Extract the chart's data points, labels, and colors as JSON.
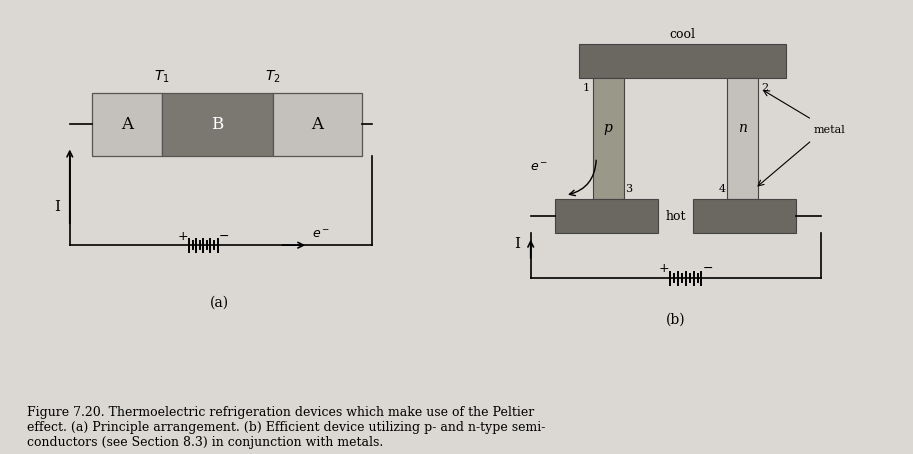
{
  "bg_color": "#dbd8d3",
  "light_gray_A": "#c4c0bb",
  "dark_gray_B": "#7a7870",
  "metal_dark": "#6a6860",
  "p_gray": "#9a9888",
  "n_gray": "#c4c0bb",
  "wire_color": "#111111",
  "caption_line1": "Figure 7.20. Thermoelectric refrigeration devices which make use of the Peltier",
  "caption_line2": "effect. (a) Principle arrangement. (b) Efficient device utilizing p- and n-type semi-",
  "caption_line3": "conductors (see Section 8.3) in conjunction with metals."
}
